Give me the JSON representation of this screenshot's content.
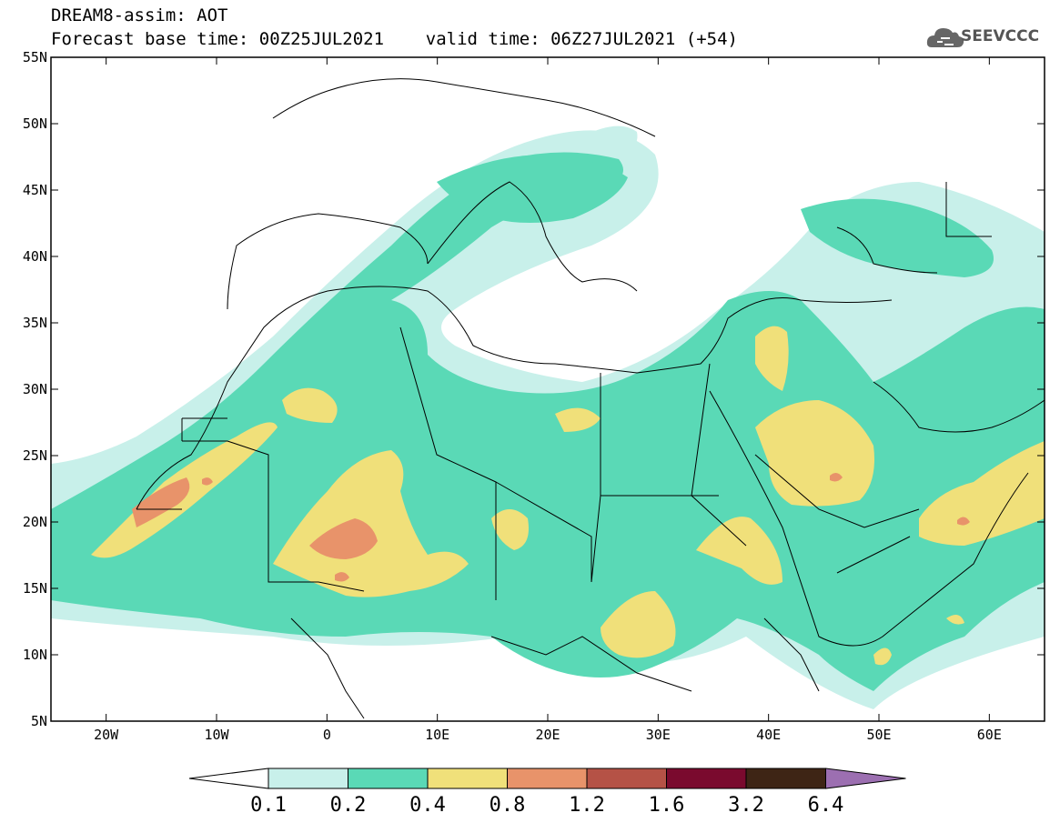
{
  "header": {
    "line1": "DREAM8-assim: AOT",
    "line2": "Forecast base time: 00Z25JUL2021    valid time: 06Z27JUL2021 (+54)",
    "logo_text": "SEEVCCC",
    "logo_icon": "cloud-icon"
  },
  "map": {
    "lon_range": [
      -25,
      65
    ],
    "lat_range": [
      5,
      55
    ],
    "lat_ticks": [
      {
        "value": 55,
        "label": "55N"
      },
      {
        "value": 50,
        "label": "50N"
      },
      {
        "value": 45,
        "label": "45N"
      },
      {
        "value": 40,
        "label": "40N"
      },
      {
        "value": 35,
        "label": "35N"
      },
      {
        "value": 30,
        "label": "30N"
      },
      {
        "value": 25,
        "label": "25N"
      },
      {
        "value": 20,
        "label": "20N"
      },
      {
        "value": 15,
        "label": "15N"
      },
      {
        "value": 10,
        "label": "10N"
      },
      {
        "value": 5,
        "label": "5N"
      }
    ],
    "lon_ticks": [
      {
        "value": -20,
        "label": "20W"
      },
      {
        "value": -10,
        "label": "10W"
      },
      {
        "value": 0,
        "label": "0"
      },
      {
        "value": 10,
        "label": "10E"
      },
      {
        "value": 20,
        "label": "20E"
      },
      {
        "value": 30,
        "label": "30E"
      },
      {
        "value": 40,
        "label": "40E"
      },
      {
        "value": 50,
        "label": "50E"
      },
      {
        "value": 60,
        "label": "60E"
      }
    ]
  },
  "colorbar": {
    "labels": [
      "0.1",
      "0.2",
      "0.4",
      "0.8",
      "1.2",
      "1.6",
      "3.2",
      "6.4"
    ],
    "colors": [
      "#ffffff",
      "#c8f0ea",
      "#5ad9b6",
      "#f0e07a",
      "#e8936a",
      "#b55246",
      "#7a0a2e",
      "#3e2515",
      "#9c6fb1"
    ]
  }
}
